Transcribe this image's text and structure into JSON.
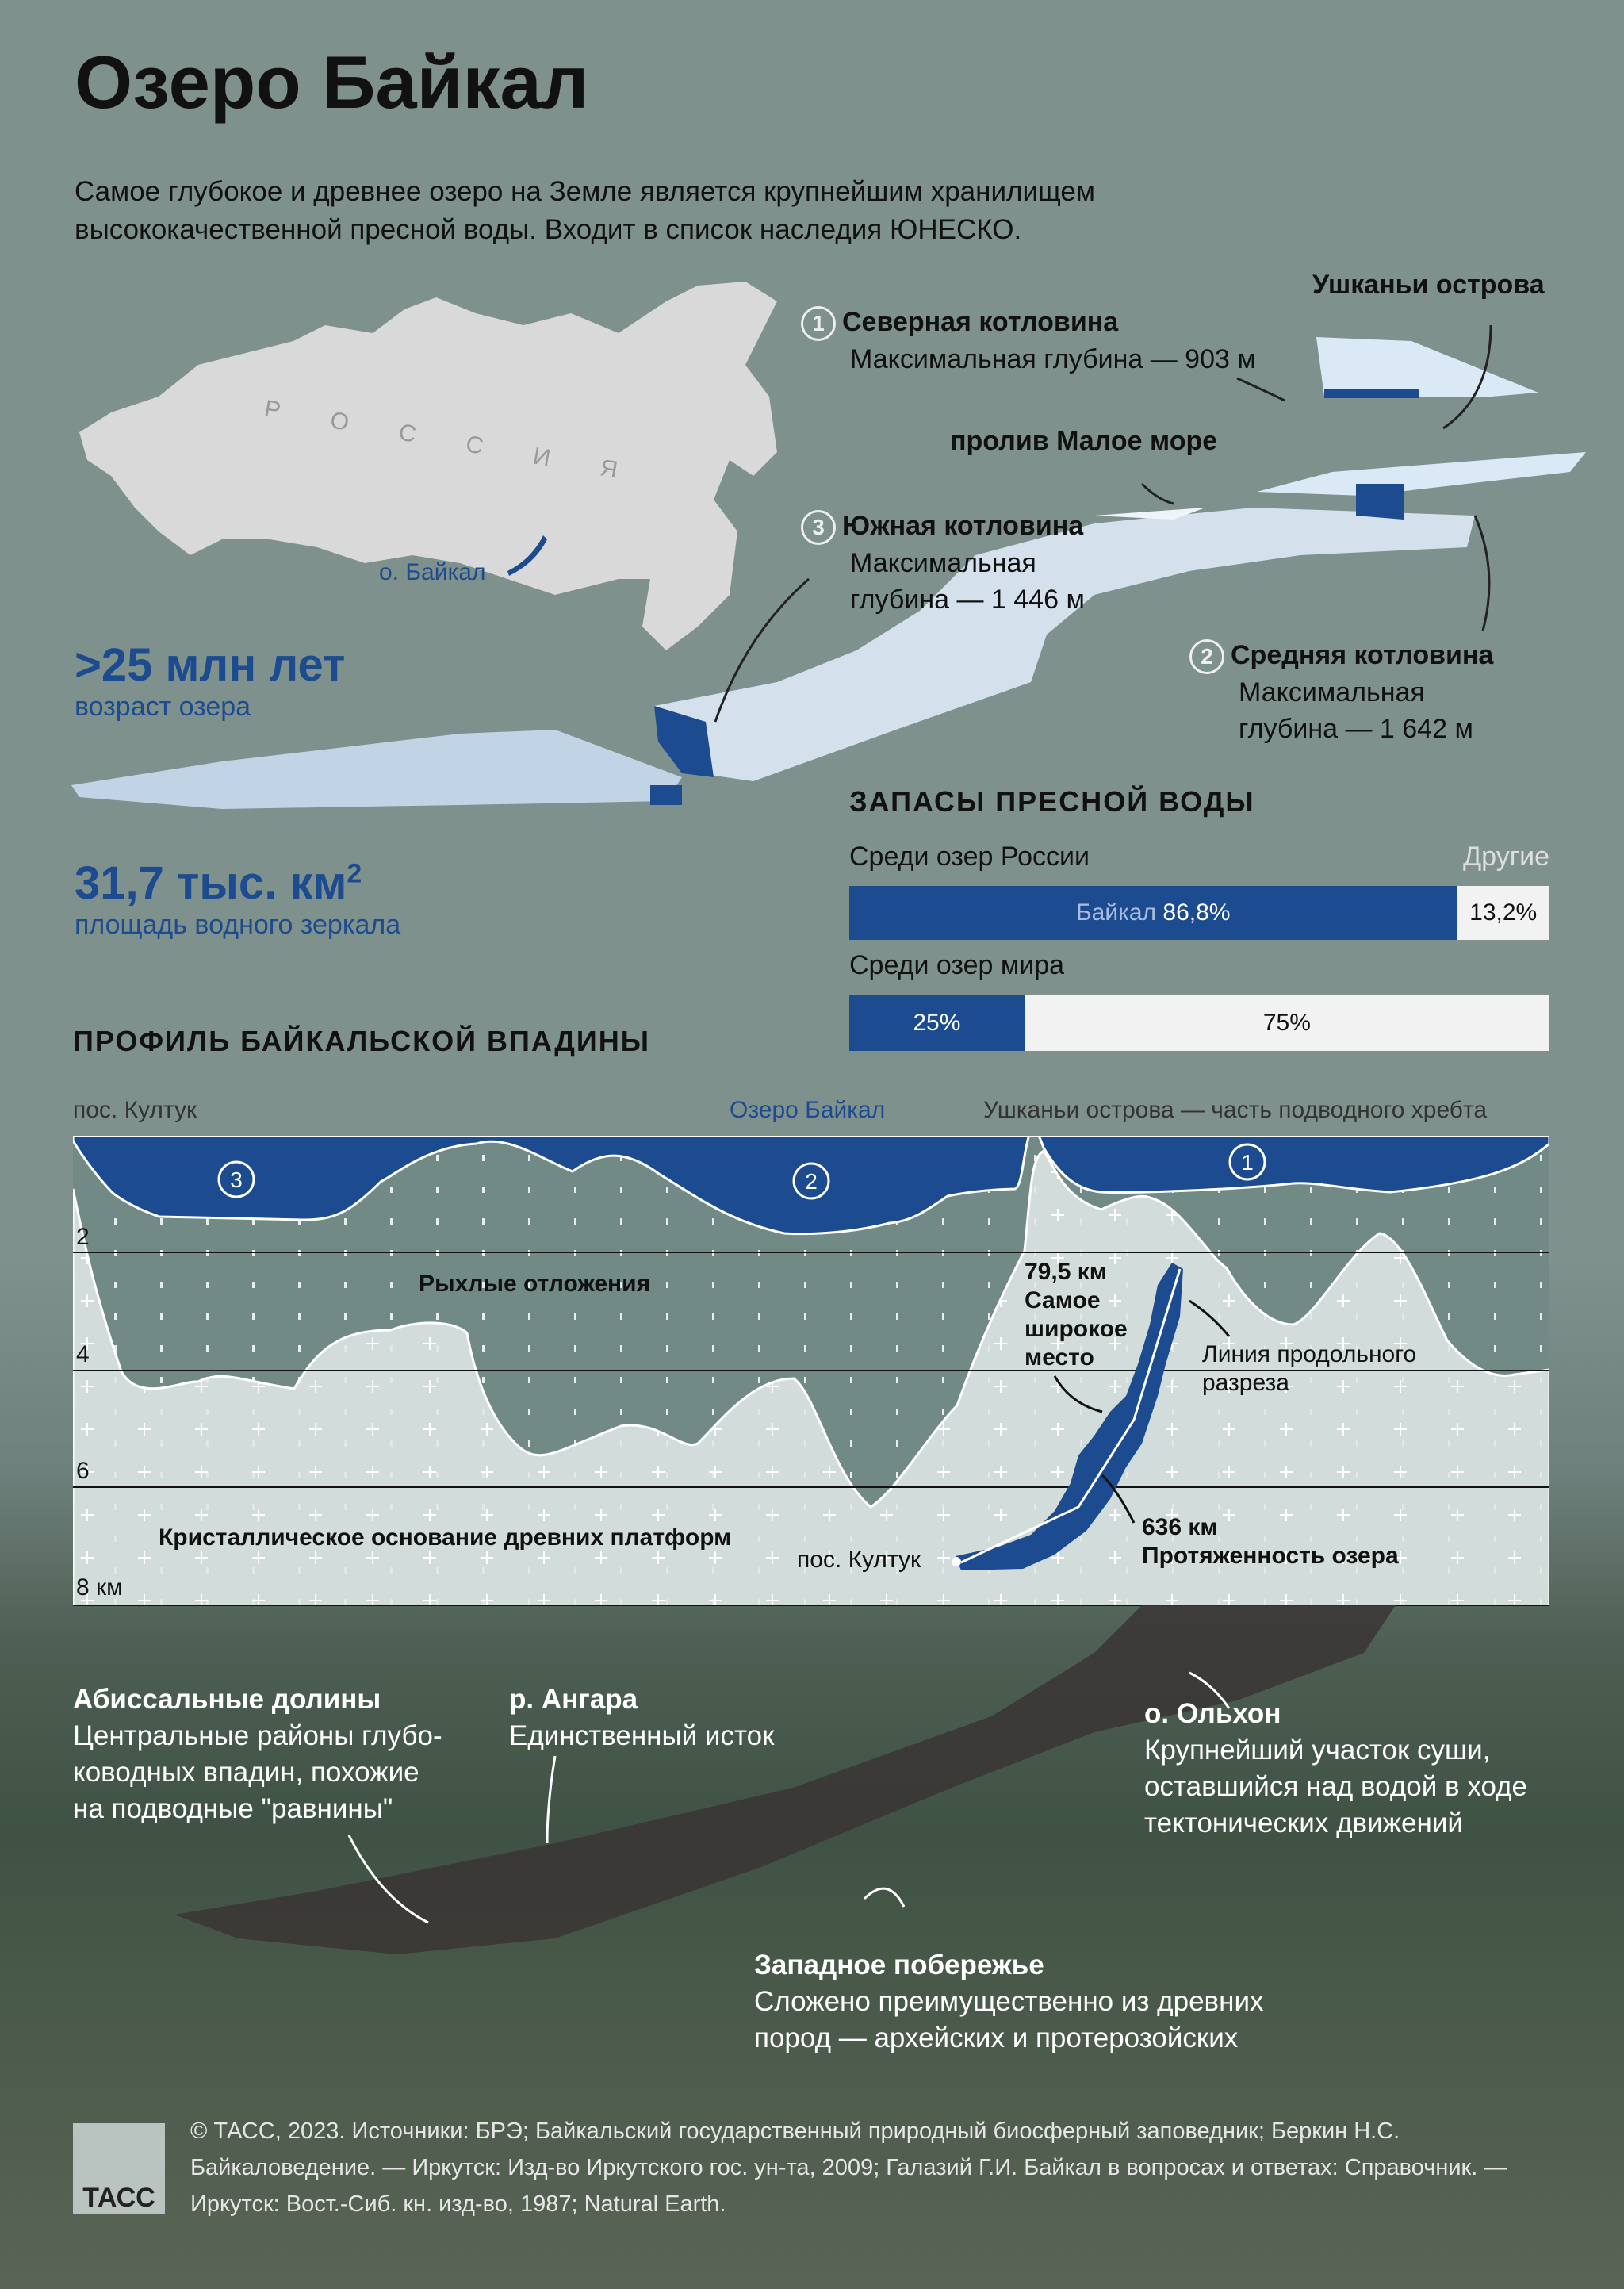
{
  "title": "Озеро Байкал",
  "intro": "Самое глубокое и древнее озеро на Земле является крупнейшим хранилищем высококачественной пресной воды. Входит в список наследия ЮНЕСКО.",
  "map": {
    "country": "Р О С С И Я",
    "lake": "о. Байкал"
  },
  "stats": [
    {
      "value": ">25 млн лет",
      "label": "возраст озера"
    },
    {
      "value": "31,7 тыс. км",
      "sup": "2",
      "label": "площадь водного зеркала"
    }
  ],
  "basins": [
    {
      "num": "1",
      "name": "Северная котловина",
      "desc": "Максимальная глубина — 903 м"
    },
    {
      "num": "2",
      "name": "Средняя котловина",
      "desc1": "Максимальная",
      "desc2": "глубина — 1 642 м"
    },
    {
      "num": "3",
      "name": "Южная котловина",
      "desc1": "Максимальная",
      "desc2": "глубина — 1 446 м"
    }
  ],
  "places": {
    "ushkany": "Ушканьи острова",
    "maloe_more": "пролив Малое море"
  },
  "reserves": {
    "heading": "ЗАПАСЫ ПРЕСНОЙ ВОДЫ",
    "russia": {
      "label": "Среди озер России",
      "other_label": "Другие",
      "baikal_name": "Байкал",
      "baikal": "86,8%",
      "other": "13,2%",
      "baikal_pct": 86.8
    },
    "world": {
      "label": "Среди озер мира",
      "baikal": "25%",
      "other": "75%",
      "baikal_pct": 25
    },
    "colors": {
      "baikal": "#1c4b8f",
      "other": "#f2f2f2"
    }
  },
  "profile": {
    "heading": "ПРОФИЛЬ БАЙКАЛЬСКОЙ ВПАДИНЫ",
    "left_label": "пос. Култук",
    "center_label": "Озеро Байкал",
    "right_label": "Ушканьи острова — часть подводного хребта",
    "depth_ticks": [
      "2",
      "4",
      "6",
      "8 км"
    ],
    "sediments": "Рыхлые отложения",
    "basement": "Кристаллическое основание древних платформ",
    "width_value": "79,5 км",
    "width_desc": [
      "Самое",
      "широкое",
      "место"
    ],
    "section_line": [
      "Линия продольного",
      "разреза"
    ],
    "length_value": "636 км",
    "length_desc": "Протяженность озера",
    "kultuk": "пос. Култук",
    "basin_nums": [
      "3",
      "2",
      "1"
    ]
  },
  "relief": [
    {
      "title": "Абиссальные долины",
      "lines": [
        "Центральные районы глубо-",
        "ководных впадин, похожие",
        "на подводные \"равнины\""
      ]
    },
    {
      "title": "р. Ангара",
      "lines": [
        "Единственный исток"
      ]
    },
    {
      "title": "о. Ольхон",
      "lines": [
        "Крупнейший участок суши,",
        "оставшийся над водой в ходе",
        "тектонических движений"
      ]
    },
    {
      "title": "Западное побережье",
      "lines": [
        "Сложено преимущественно из древних",
        "пород — архейских и протерозойских"
      ]
    }
  ],
  "footer": {
    "logo": "ТАСС",
    "text": "© ТАСС, 2023. Источники: БРЭ; Байкальский государственный природный биосферный заповедник; Беркин Н.С. Байкаловедение. — Иркутск: Изд-во Иркутского гос. ун-та, 2009; Галазий Г.И. Байкал в вопросах и ответах: Справочник. — Иркутск: Вост.-Сиб. кн. изд-во, 1987; Natural Earth."
  }
}
